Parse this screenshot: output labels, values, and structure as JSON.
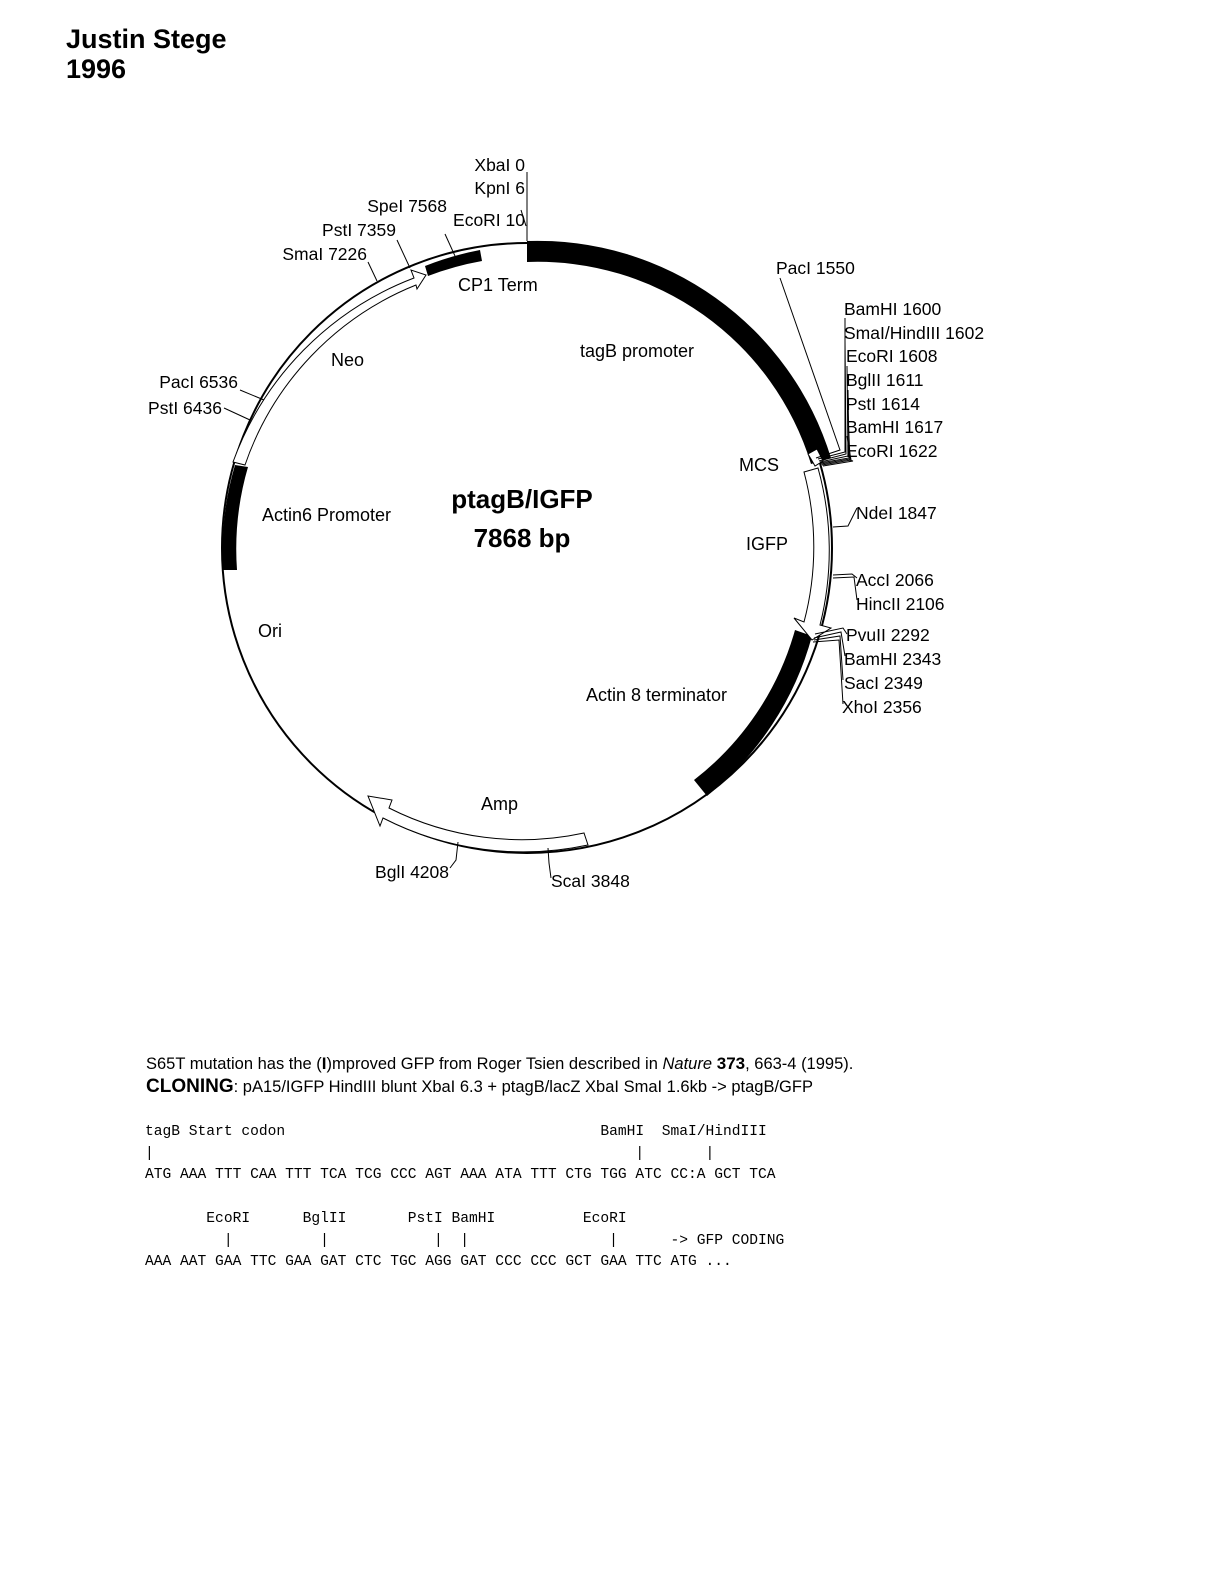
{
  "header": {
    "author": "Justin Stege",
    "year": "1996"
  },
  "plasmid": {
    "name": "ptagB/IGFP",
    "size": "7868 bp",
    "features": [
      {
        "id": "tagb-promoter",
        "label": "tagB promoter"
      },
      {
        "id": "mcs",
        "label": "MCS"
      },
      {
        "id": "igfp",
        "label": "IGFP"
      },
      {
        "id": "actin8-terminator",
        "label": "Actin 8 terminator"
      },
      {
        "id": "amp",
        "label": "Amp"
      },
      {
        "id": "ori",
        "label": "Ori"
      },
      {
        "id": "actin6-promoter",
        "label": "Actin6 Promoter"
      },
      {
        "id": "neo",
        "label": "Neo"
      },
      {
        "id": "cp1-term",
        "label": "CP1 Term"
      }
    ],
    "sites": [
      {
        "id": "xbai-0",
        "label": "XbaI 0"
      },
      {
        "id": "kpni-6",
        "label": "KpnI 6"
      },
      {
        "id": "ecori-10",
        "label": "EcoRI 10"
      },
      {
        "id": "spei-7568",
        "label": "SpeI 7568"
      },
      {
        "id": "psti-7359",
        "label": "PstI 7359"
      },
      {
        "id": "smai-7226",
        "label": "SmaI 7226"
      },
      {
        "id": "paci-6536",
        "label": "PacI 6536"
      },
      {
        "id": "psti-6436",
        "label": "PstI 6436"
      },
      {
        "id": "paci-1550",
        "label": "PacI 1550"
      },
      {
        "id": "bamhi-1600",
        "label": "BamHI 1600"
      },
      {
        "id": "smai-hindiii-1602",
        "label": "SmaI/HindIII 1602"
      },
      {
        "id": "ecori-1608",
        "label": "EcoRI 1608"
      },
      {
        "id": "bglii-1611",
        "label": "BglII 1611"
      },
      {
        "id": "psti-1614",
        "label": "PstI 1614"
      },
      {
        "id": "bamhi-1617",
        "label": "BamHI 1617"
      },
      {
        "id": "ecori-1622",
        "label": "EcoRI 1622"
      },
      {
        "id": "ndei-1847",
        "label": "NdeI 1847"
      },
      {
        "id": "acci-2066",
        "label": "AccI 2066"
      },
      {
        "id": "hincii-2106",
        "label": "HincII 2106"
      },
      {
        "id": "pvuii-2292",
        "label": "PvuII 2292"
      },
      {
        "id": "bamhi-2343",
        "label": "BamHI 2343"
      },
      {
        "id": "saci-2349",
        "label": "SacI 2349"
      },
      {
        "id": "xhoi-2356",
        "label": "XhoI 2356"
      },
      {
        "id": "scai-3848",
        "label": "ScaI 3848"
      },
      {
        "id": "bgli-4208",
        "label": "BglI 4208"
      }
    ]
  },
  "notes": {
    "line1_pre": "S65T mutation has the (",
    "line1_bold": "I",
    "line1_mid": ")mproved GFP from Roger Tsien described in ",
    "line1_journal": "Nature",
    "line1_volume": " 373",
    "line1_post": ", 663-4 (1995).",
    "cloning_label": "CLONING",
    "cloning_text": ":  pA15/IGFP HindIII blunt XbaI 6.3 + ptagB/lacZ XbaI SmaI 1.6kb  ->  ptagB/GFP"
  },
  "sequence": {
    "block1": [
      "tagB Start codon                                    BamHI  SmaI/HindIII",
      "|                                                       |       |",
      "ATG AAA TTT CAA TTT TCA TCG CCC AGT AAA ATA TTT CTG TGG ATC CC:A GCT TCA"
    ],
    "block2": [
      "       EcoRI      BglII       PstI BamHI          EcoRI",
      "         |          |            |  |                |      -> GFP CODING",
      "AAA AAT GAA TTC GAA GAT CTC TGC AGG GAT CCC CCC GCT GAA TTC ATG ..."
    ]
  }
}
